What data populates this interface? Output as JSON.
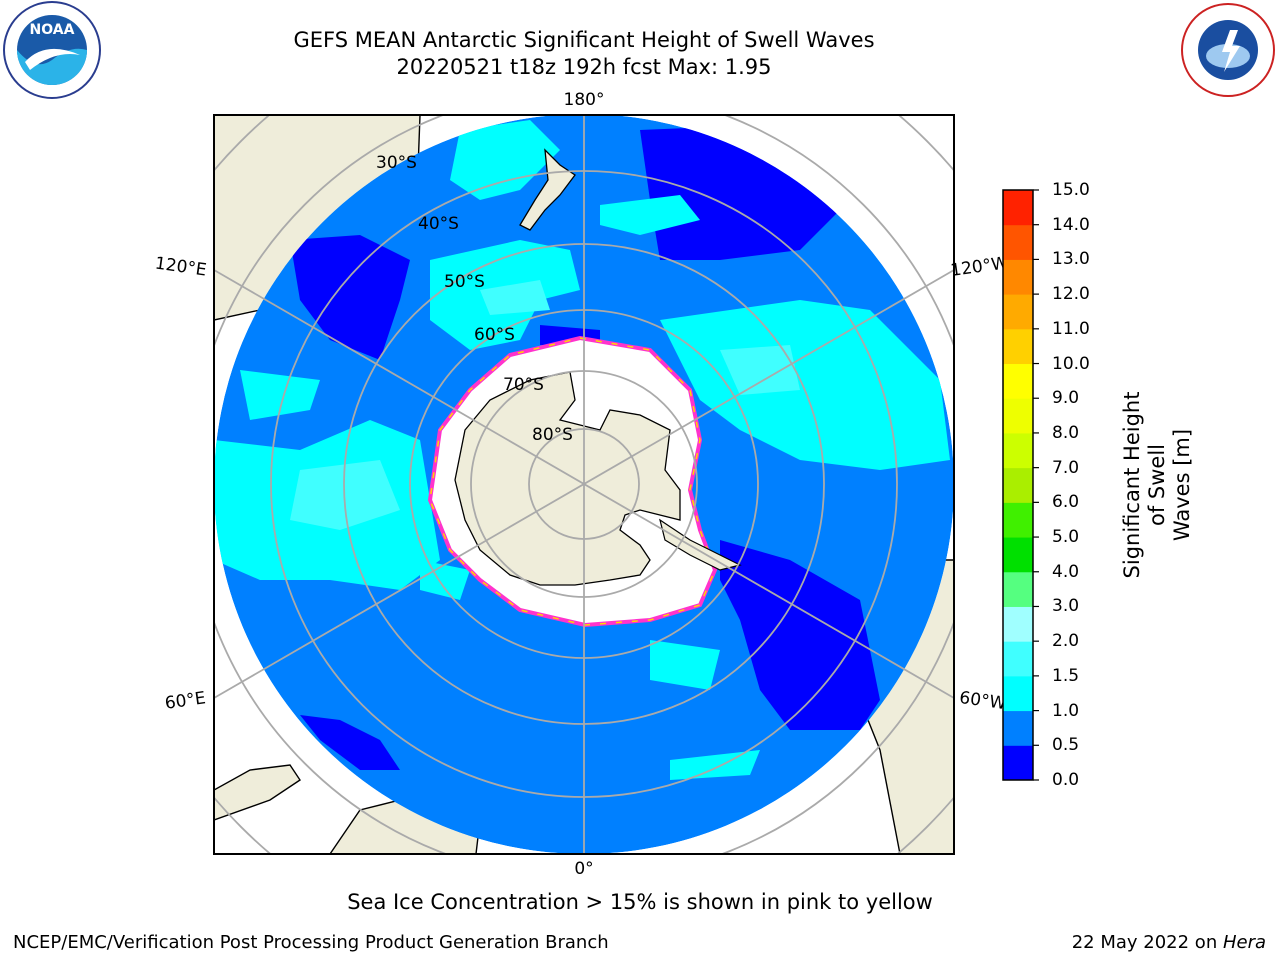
{
  "title": {
    "line1": "GEFS MEAN Antarctic Significant Height of Swell Waves",
    "line2": "20220521 t18z 192h fcst   Max: 1.95"
  },
  "map": {
    "projection": "south-polar-stereographic",
    "lon_labels": [
      "180°",
      "120°E",
      "120°W",
      "60°E",
      "60°W",
      "0°"
    ],
    "lat_labels": [
      "30°S",
      "40°S",
      "50°S",
      "60°S",
      "70°S",
      "80°S"
    ],
    "sea_ice_colors": [
      "#ff33cc",
      "#ffd700"
    ],
    "land_color": "#efedda"
  },
  "colorbar": {
    "label_line1": "Significant Height of Swell",
    "label_line2": "Waves [m]",
    "ticks": [
      "0.0",
      "0.5",
      "1.0",
      "1.5",
      "2.0",
      "3.0",
      "4.0",
      "5.0",
      "6.0",
      "7.0",
      "8.0",
      "9.0",
      "10.0",
      "11.0",
      "12.0",
      "13.0",
      "14.0",
      "15.0"
    ],
    "colors": [
      "#0000ff",
      "#0080ff",
      "#00ffff",
      "#40ffff",
      "#a0ffff",
      "#55ff80",
      "#00e000",
      "#40f000",
      "#aaee00",
      "#ccff00",
      "#eeff00",
      "#ffff00",
      "#ffd000",
      "#ffaa00",
      "#ff8800",
      "#ff5500",
      "#ff2200"
    ]
  },
  "note": "Sea Ice Concentration > 15% is shown in pink to yellow",
  "footer": {
    "left": "NCEP/EMC/Verification Post Processing Product Generation Branch",
    "right_date": "22 May 2022 on ",
    "right_machine": "Hera"
  },
  "logos": {
    "left": "NOAA",
    "right": "NATIONAL WEATHER SERVICE"
  }
}
